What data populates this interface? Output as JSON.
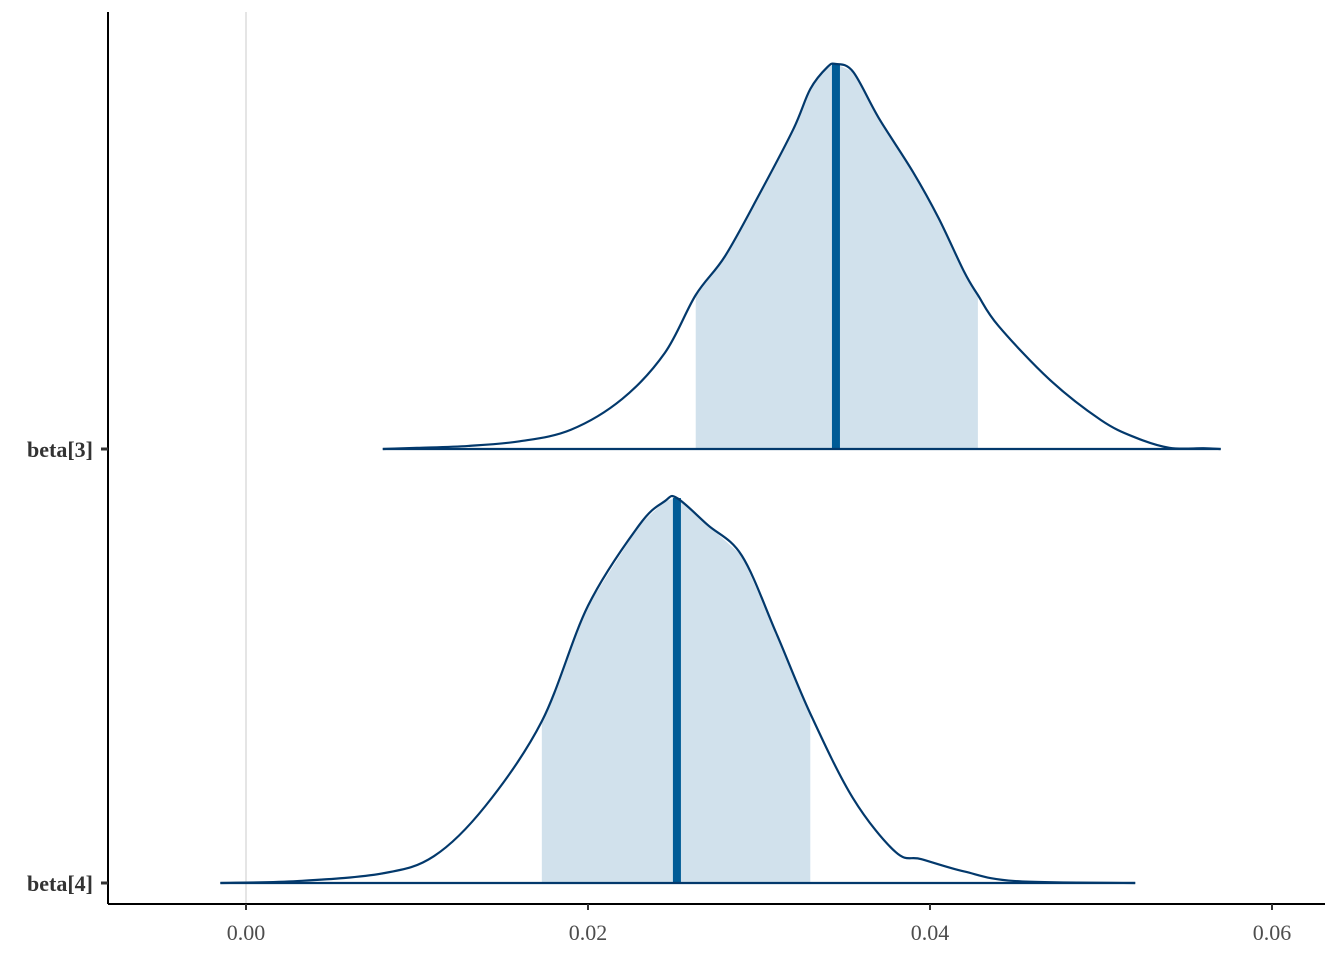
{
  "chart_data": {
    "type": "area",
    "title": "",
    "xlabel": "",
    "ylabel": "",
    "xlim": [
      -0.008,
      0.062
    ],
    "x_ticks": [
      {
        "value": 0.0,
        "label": "0.00"
      },
      {
        "value": 0.02,
        "label": "0.02"
      },
      {
        "value": 0.04,
        "label": "0.04"
      },
      {
        "value": 0.06,
        "label": "0.06"
      }
    ],
    "reference_line": 0,
    "grid": false,
    "colors": {
      "fill": "#d1e1ec",
      "outline": "#03396c",
      "median": "#005b96",
      "axis": "#000000",
      "reference": "#e5e5e5"
    },
    "series": [
      {
        "name": "beta[3]",
        "median": 0.0345,
        "interval": [
          0.0263,
          0.0428
        ],
        "density": [
          [
            0.008,
            0.0
          ],
          [
            0.01,
            0.003
          ],
          [
            0.013,
            0.008
          ],
          [
            0.016,
            0.02
          ],
          [
            0.019,
            0.05
          ],
          [
            0.022,
            0.13
          ],
          [
            0.0245,
            0.25
          ],
          [
            0.0263,
            0.4
          ],
          [
            0.028,
            0.5
          ],
          [
            0.03,
            0.66
          ],
          [
            0.032,
            0.83
          ],
          [
            0.033,
            0.935
          ],
          [
            0.034,
            0.992
          ],
          [
            0.0345,
            1.0
          ],
          [
            0.0355,
            0.98
          ],
          [
            0.037,
            0.86
          ],
          [
            0.039,
            0.72
          ],
          [
            0.0405,
            0.6
          ],
          [
            0.042,
            0.46
          ],
          [
            0.0428,
            0.4
          ],
          [
            0.044,
            0.32
          ],
          [
            0.047,
            0.18
          ],
          [
            0.05,
            0.075
          ],
          [
            0.052,
            0.03
          ],
          [
            0.054,
            0.003
          ],
          [
            0.056,
            0.002
          ],
          [
            0.057,
            0.0
          ]
        ]
      },
      {
        "name": "beta[4]",
        "median": 0.0252,
        "interval": [
          0.0173,
          0.033
        ],
        "density": [
          [
            -0.0015,
            0.0
          ],
          [
            0.003,
            0.005
          ],
          [
            0.008,
            0.025
          ],
          [
            0.011,
            0.07
          ],
          [
            0.014,
            0.2
          ],
          [
            0.0173,
            0.42
          ],
          [
            0.02,
            0.72
          ],
          [
            0.023,
            0.93
          ],
          [
            0.0245,
            0.992
          ],
          [
            0.0252,
            1.0
          ],
          [
            0.027,
            0.93
          ],
          [
            0.029,
            0.85
          ],
          [
            0.031,
            0.65
          ],
          [
            0.033,
            0.44
          ],
          [
            0.0355,
            0.22
          ],
          [
            0.038,
            0.08
          ],
          [
            0.0395,
            0.062
          ],
          [
            0.042,
            0.03
          ],
          [
            0.045,
            0.005
          ],
          [
            0.052,
            0.0
          ]
        ]
      }
    ]
  }
}
